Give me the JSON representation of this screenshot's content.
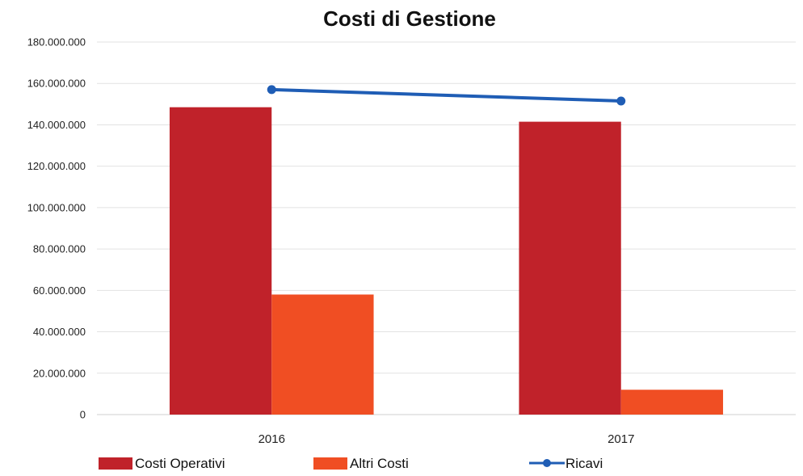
{
  "chart_data": {
    "type": "bar",
    "title": "Costi di Gestione",
    "categories": [
      "2016",
      "2017"
    ],
    "ylim": [
      0,
      180000000
    ],
    "yticks": [
      {
        "value": 0,
        "label": "0"
      },
      {
        "value": 20000000,
        "label": "20.000.000"
      },
      {
        "value": 40000000,
        "label": "40.000.000"
      },
      {
        "value": 60000000,
        "label": "60.000.000"
      },
      {
        "value": 80000000,
        "label": "80.000.000"
      },
      {
        "value": 100000000,
        "label": "100.000.000"
      },
      {
        "value": 120000000,
        "label": "120.000.000"
      },
      {
        "value": 140000000,
        "label": "140.000.000"
      },
      {
        "value": 160000000,
        "label": "160.000.000"
      },
      {
        "value": 180000000,
        "label": "180.000.000"
      }
    ],
    "grid": true,
    "legend_position": "bottom",
    "series": [
      {
        "name": "Costi Operativi",
        "kind": "bar",
        "color": "#c0222a",
        "values": [
          148500000,
          141500000
        ]
      },
      {
        "name": "Altri Costi",
        "kind": "bar",
        "color": "#f04e23",
        "values": [
          58000000,
          12000000
        ]
      },
      {
        "name": "Ricavi",
        "kind": "line",
        "color": "#1f5db5",
        "values": [
          157000000,
          151500000
        ]
      }
    ]
  }
}
